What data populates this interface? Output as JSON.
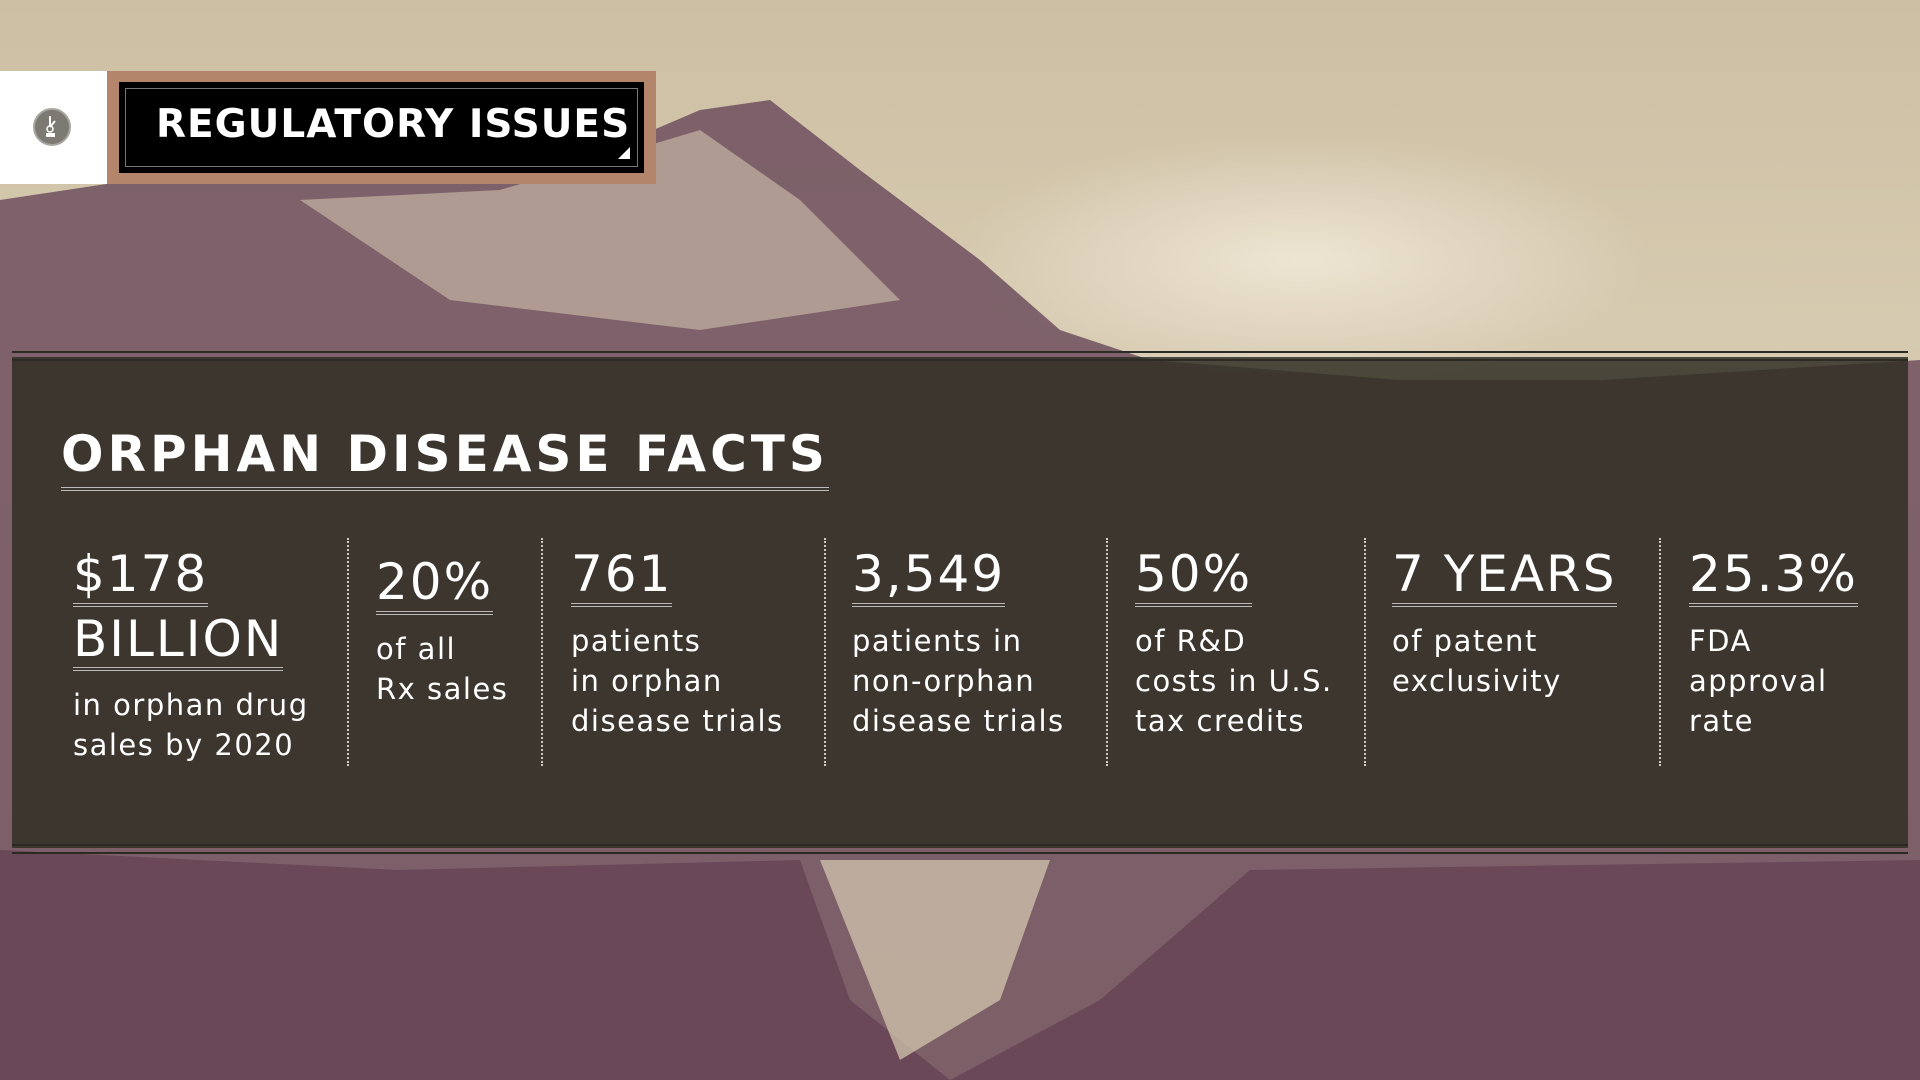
{
  "header": {
    "title": "REGULATORY ISSUES",
    "logo_icon": "clock-badge-icon"
  },
  "panel": {
    "heading": "ORPHAN DISEASE FACTS",
    "facts": [
      {
        "value": "$178",
        "value2": "BILLION",
        "desc": "in orphan drug\nsales by 2020"
      },
      {
        "value": "20%",
        "desc": "of all\nRx sales"
      },
      {
        "value": "761",
        "desc": "patients\nin orphan\ndisease trials"
      },
      {
        "value": "3,549",
        "desc": "patients in\nnon-orphan\ndisease trials"
      },
      {
        "value": "50%",
        "desc": "of R&D\ncosts in U.S.\ntax credits"
      },
      {
        "value": "7 YEARS",
        "desc": "of patent\nexclusivity"
      },
      {
        "value": "25.3%",
        "desc": "FDA\napproval\nrate"
      }
    ]
  },
  "colors": {
    "header_border": "#b3866c",
    "panel": "#302e24",
    "mountain": "#6e4f5e"
  }
}
